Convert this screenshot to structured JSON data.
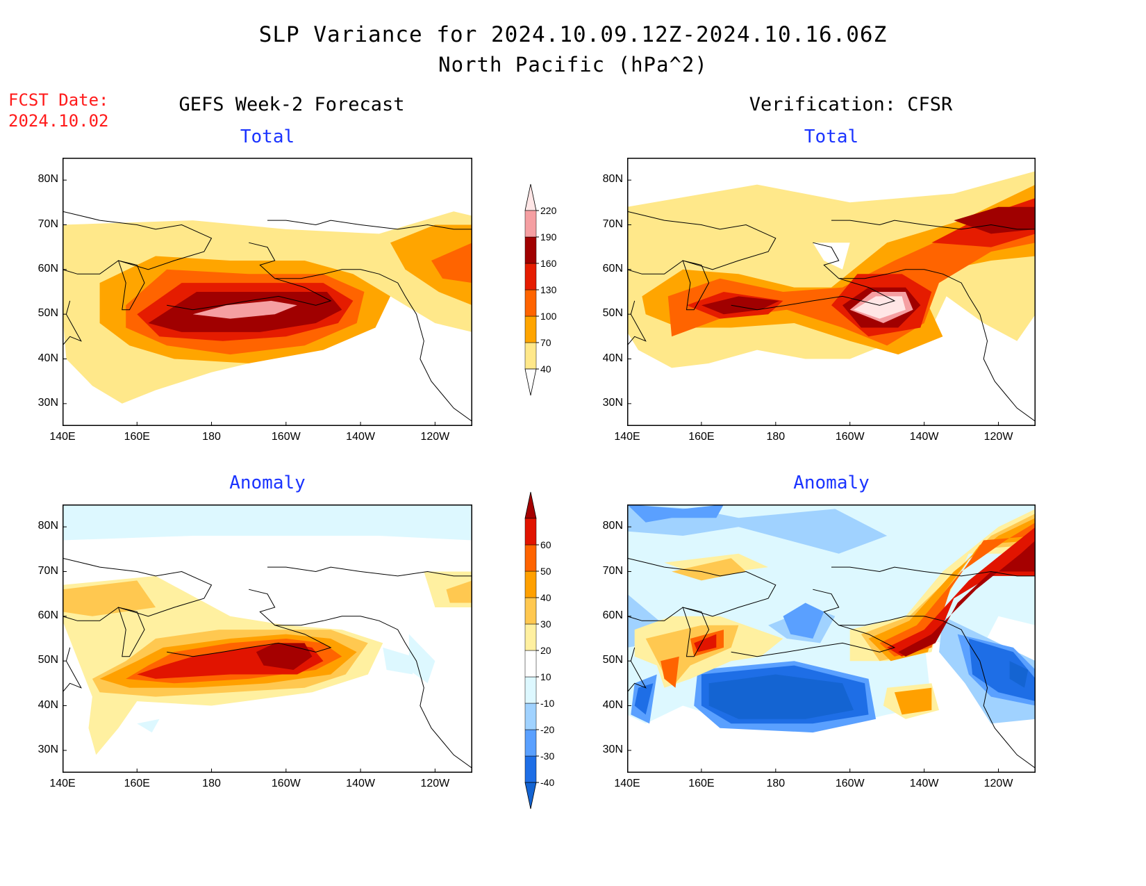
{
  "header": {
    "title": "SLP Variance for 2024.10.09.12Z-2024.10.16.06Z",
    "subtitle": "North Pacific (hPa^2)",
    "fcst_label": "FCST Date:",
    "fcst_date": "2024.10.02"
  },
  "columns": {
    "left_title": "GEFS Week-2 Forecast",
    "right_title": "Verification: CFSR"
  },
  "panels": {
    "total_label": "Total",
    "anomaly_label": "Anomaly"
  },
  "chart_data": [
    {
      "type": "heatmap",
      "panel": "GEFS Week-2 Forecast - Total",
      "title": "Total",
      "x_ticks": [
        "140E",
        "160E",
        "180",
        "160W",
        "140W",
        "120W"
      ],
      "y_ticks": [
        "80N",
        "70N",
        "60N",
        "50N",
        "40N",
        "30N"
      ],
      "xlim": [
        "140E",
        "110W"
      ],
      "ylim": [
        "25N",
        "85N"
      ],
      "levels": [
        40,
        70,
        100,
        130,
        160,
        190,
        220
      ],
      "features": [
        {
          "lon": 190,
          "lat": 51,
          "value": 205,
          "desc": "maximum"
        },
        {
          "lon": 185,
          "lat": 50,
          "value": 170
        },
        {
          "lon": 235,
          "lat": 62,
          "value": 110
        }
      ]
    },
    {
      "type": "heatmap",
      "panel": "Verification: CFSR - Total",
      "title": "Total",
      "x_ticks": [
        "140E",
        "160E",
        "180",
        "160W",
        "140W",
        "120W"
      ],
      "y_ticks": [
        "80N",
        "70N",
        "60N",
        "50N",
        "40N",
        "30N"
      ],
      "xlim": [
        "140E",
        "110W"
      ],
      "ylim": [
        "25N",
        "85N"
      ],
      "levels": [
        40,
        70,
        100,
        130,
        160,
        190,
        220
      ],
      "features": [
        {
          "lon": 203,
          "lat": 51,
          "value": 230,
          "desc": "maximum"
        },
        {
          "lon": 170,
          "lat": 52,
          "value": 170
        },
        {
          "lon": 235,
          "lat": 73,
          "value": 175
        }
      ]
    },
    {
      "type": "heatmap",
      "panel": "GEFS Week-2 Forecast - Anomaly",
      "title": "Anomaly",
      "x_ticks": [
        "140E",
        "160E",
        "180",
        "160W",
        "140W",
        "120W"
      ],
      "y_ticks": [
        "80N",
        "70N",
        "60N",
        "50N",
        "40N",
        "30N"
      ],
      "xlim": [
        "140E",
        "110W"
      ],
      "ylim": [
        "25N",
        "85N"
      ],
      "levels": [
        -40,
        -30,
        -20,
        -10,
        10,
        20,
        30,
        40,
        50,
        60
      ],
      "features": [
        {
          "lon": 195,
          "lat": 51,
          "value": 65,
          "desc": "maximum"
        },
        {
          "lon": 150,
          "lat": 63,
          "value": 25
        }
      ]
    },
    {
      "type": "heatmap",
      "panel": "Verification: CFSR - Anomaly",
      "title": "Anomaly",
      "x_ticks": [
        "140E",
        "160E",
        "180",
        "160W",
        "140W",
        "120W"
      ],
      "y_ticks": [
        "80N",
        "70N",
        "60N",
        "50N",
        "40N",
        "30N"
      ],
      "xlim": [
        "140E",
        "110W"
      ],
      "ylim": [
        "25N",
        "85N"
      ],
      "levels": [
        -40,
        -30,
        -20,
        -10,
        10,
        20,
        30,
        40,
        50,
        60
      ],
      "features": [
        {
          "lon": 230,
          "lat": 70,
          "value": 65,
          "desc": "maximum"
        },
        {
          "lon": 180,
          "lat": 43,
          "value": -45,
          "desc": "minimum"
        },
        {
          "lon": 240,
          "lat": 47,
          "value": -40
        }
      ]
    }
  ],
  "colorbars": {
    "total": {
      "labels": [
        "40",
        "70",
        "100",
        "130",
        "160",
        "190",
        "220"
      ],
      "colors": [
        "#ffffff",
        "#ffe88a",
        "#ffa500",
        "#ff6400",
        "#e51c00",
        "#a00000",
        "#f59fa2",
        "#ffe6e6"
      ]
    },
    "anomaly": {
      "labels": [
        "-40",
        "-30",
        "-20",
        "-10",
        "10",
        "20",
        "30",
        "40",
        "50",
        "60"
      ],
      "colors": [
        "#1464d2",
        "#1e6ee6",
        "#5aa0ff",
        "#a0d2ff",
        "#ddf8ff",
        "#ffffff",
        "#fff0a0",
        "#ffc850",
        "#ffa000",
        "#ff6400",
        "#e11400",
        "#a50000"
      ]
    }
  }
}
